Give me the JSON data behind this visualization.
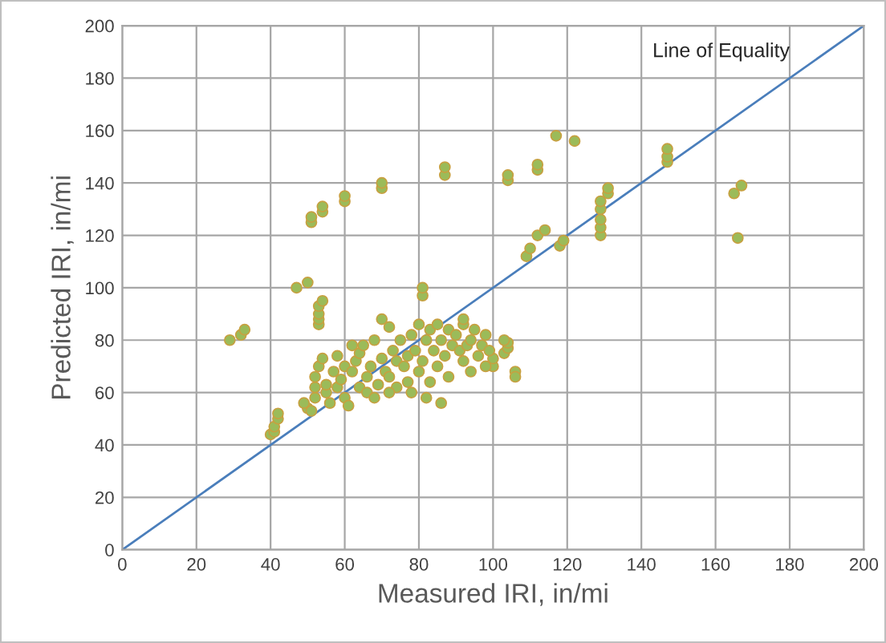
{
  "chart_data": {
    "type": "scatter",
    "xlabel": "Measured IRI, in/mi",
    "ylabel": "Predicted IRI, in/mi",
    "xlim": [
      0,
      200
    ],
    "ylim": [
      0,
      200
    ],
    "xticks": [
      0,
      20,
      40,
      60,
      80,
      100,
      120,
      140,
      160,
      180,
      200
    ],
    "yticks": [
      0,
      20,
      40,
      60,
      80,
      100,
      120,
      140,
      160,
      180,
      200
    ],
    "grid": true,
    "marker": "circle",
    "annotations": [
      "Line of Equality"
    ],
    "series": [
      {
        "color": "#9bbb59",
        "x": [
          29,
          32,
          33,
          40,
          41,
          41,
          42,
          42,
          47,
          50,
          50,
          51,
          49,
          51,
          51,
          54,
          54,
          60,
          60,
          53,
          53,
          53,
          53,
          54,
          70,
          70,
          87,
          87,
          81,
          81,
          104,
          104,
          112,
          112,
          117,
          122,
          109,
          110,
          112,
          114,
          118,
          119,
          129,
          129,
          129,
          129,
          129,
          131,
          131,
          147,
          147,
          147,
          165,
          167,
          166,
          100,
          100,
          103,
          104,
          104,
          103,
          106,
          106,
          92,
          92,
          52,
          52,
          52,
          53,
          54,
          55,
          55,
          56,
          57,
          58,
          59,
          60,
          60,
          61,
          62,
          63,
          64,
          64,
          65,
          66,
          67,
          68,
          69,
          70,
          71,
          72,
          72,
          73,
          74,
          75,
          76,
          77,
          77,
          78,
          79,
          80,
          80,
          81,
          82,
          83,
          83,
          84,
          85,
          85,
          86,
          87,
          88,
          88,
          89,
          90,
          91,
          92,
          93,
          94,
          95,
          96,
          97,
          98,
          99,
          58,
          62,
          66,
          70,
          74,
          82,
          86,
          78,
          94,
          98,
          68,
          72
        ],
        "values": [
          80,
          82,
          84,
          44,
          45,
          47,
          50,
          52,
          100,
          102,
          54,
          53,
          56,
          125,
          127,
          129,
          131,
          133,
          135,
          86,
          88,
          90,
          93,
          95,
          138,
          140,
          143,
          146,
          97,
          100,
          141,
          143,
          145,
          147,
          158,
          156,
          112,
          115,
          120,
          122,
          116,
          118,
          120,
          123,
          126,
          130,
          133,
          136,
          138,
          148,
          150,
          153,
          136,
          139,
          119,
          70,
          73,
          75,
          77,
          79,
          80,
          68,
          66,
          86,
          88,
          58,
          62,
          66,
          70,
          73,
          60,
          63,
          56,
          68,
          62,
          65,
          58,
          70,
          55,
          68,
          72,
          62,
          75,
          78,
          66,
          70,
          80,
          63,
          73,
          68,
          85,
          66,
          76,
          72,
          80,
          70,
          64,
          74,
          82,
          76,
          68,
          86,
          72,
          80,
          64,
          84,
          76,
          70,
          86,
          80,
          74,
          84,
          66,
          78,
          82,
          76,
          72,
          78,
          80,
          84,
          74,
          78,
          82,
          76,
          74,
          78,
          60,
          88,
          62,
          58,
          56,
          60,
          68,
          70,
          58,
          60
        ]
      },
      {
        "type": "line",
        "color": "#4a7ebb",
        "x": [
          0,
          200
        ],
        "values": [
          0,
          200
        ],
        "marker": "none"
      }
    ]
  }
}
